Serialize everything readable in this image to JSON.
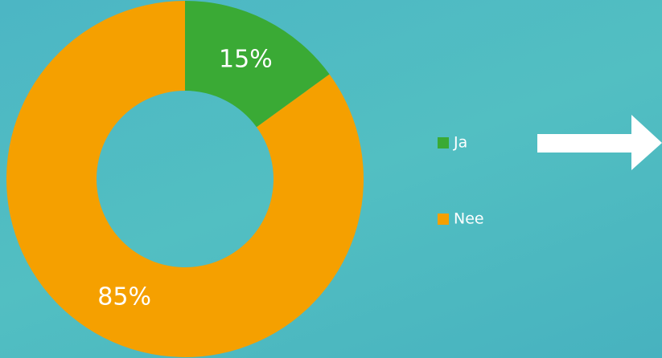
{
  "chart_data": {
    "type": "pie",
    "categories": [
      "Ja",
      "Nee"
    ],
    "values": [
      15,
      85
    ],
    "value_labels": [
      "15%",
      "85%"
    ],
    "colors": [
      "#3aaa35",
      "#f5a000"
    ],
    "donut": true,
    "legend": "right"
  }
}
